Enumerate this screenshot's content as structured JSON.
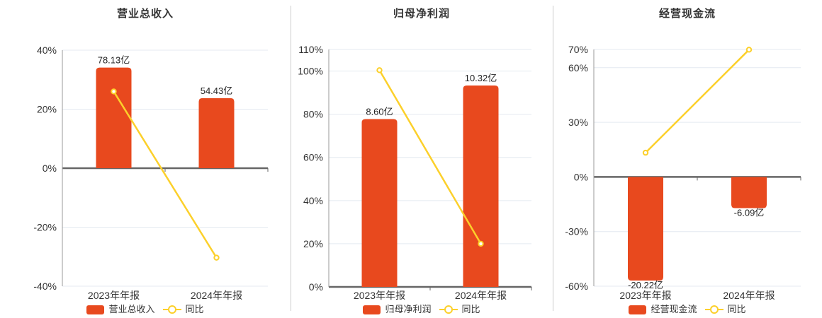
{
  "colors": {
    "bar": "#e8491e",
    "line": "#fcd02b",
    "grid": "#e4e9f0",
    "zero_line": "#666666",
    "axis_line": "#999999",
    "tick_text": "#333333",
    "value_text": "#222222",
    "separator": "#cccccc",
    "marker_fill": "#ffffff"
  },
  "chart_data": [
    {
      "type": "bar+line",
      "title": "营业总收入",
      "categories": [
        "2023年年报",
        "2024年年报"
      ],
      "bar_series": {
        "name": "营业总收入",
        "unit": "亿",
        "values": [
          78.13,
          54.43
        ],
        "labels": [
          "78.13亿",
          "54.43亿"
        ]
      },
      "line_series": {
        "name": "同比",
        "values_pct": [
          26.0,
          -30.33
        ]
      },
      "y_axis": {
        "min": -40,
        "max": 40,
        "tick_values": [
          40,
          20,
          0,
          -20,
          -40
        ],
        "tick_labels": [
          "40%",
          "20%",
          "0%",
          "-20%",
          "-40%"
        ]
      },
      "bar_scale_max_pct": 34.1,
      "legend": [
        "营业总收入",
        "同比"
      ]
    },
    {
      "type": "bar+line",
      "title": "归母净利润",
      "categories": [
        "2023年年报",
        "2024年年报"
      ],
      "bar_series": {
        "name": "归母净利润",
        "unit": "亿",
        "values": [
          8.6,
          10.32
        ],
        "labels": [
          "8.60亿",
          "10.32亿"
        ]
      },
      "line_series": {
        "name": "同比",
        "values_pct": [
          100.4,
          20.0
        ]
      },
      "y_axis": {
        "min": 0,
        "max": 110,
        "tick_values": [
          110,
          100,
          80,
          60,
          40,
          20,
          0
        ],
        "tick_labels": [
          "110%",
          "100%",
          "80%",
          "60%",
          "40%",
          "20%",
          "0%"
        ]
      },
      "bar_scale_max_pct": 93.3,
      "legend": [
        "归母净利润",
        "同比"
      ]
    },
    {
      "type": "bar+line",
      "title": "经营现金流",
      "categories": [
        "2023年年报",
        "2024年年报"
      ],
      "bar_series": {
        "name": "经营现金流",
        "unit": "亿",
        "values": [
          -20.22,
          -6.09
        ],
        "labels": [
          "-20.22亿",
          "-6.09亿"
        ]
      },
      "line_series": {
        "name": "同比",
        "values_pct": [
          13.3,
          69.88
        ]
      },
      "y_axis": {
        "min": -60,
        "max": 70,
        "tick_values": [
          70,
          60,
          30,
          0,
          -30,
          -60
        ],
        "tick_labels": [
          "70%",
          "60%",
          "30%",
          "0%",
          "-30%",
          "-60%"
        ]
      },
      "bar_scale_max_pct": 56.9,
      "legend": [
        "经营现金流",
        "同比"
      ]
    }
  ]
}
